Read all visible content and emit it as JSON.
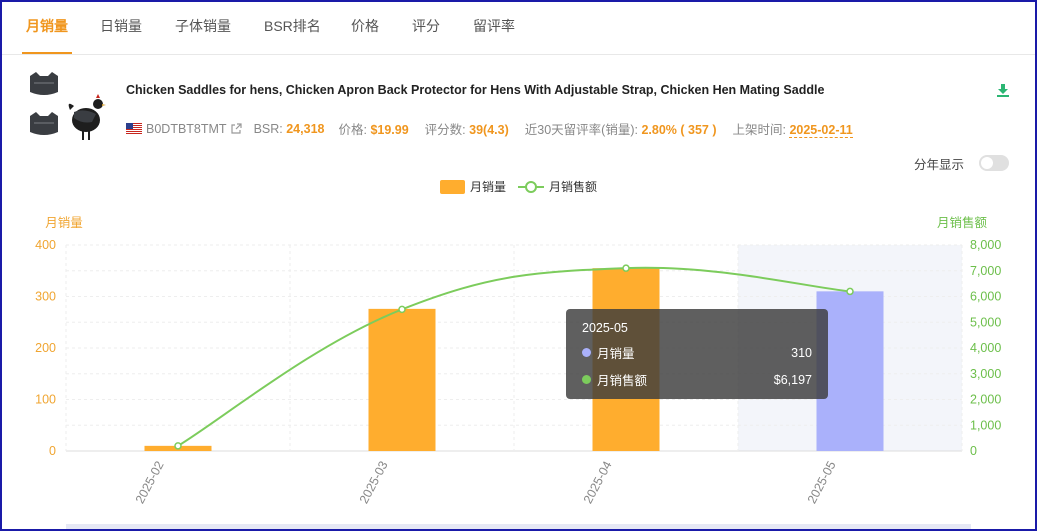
{
  "tabs": [
    {
      "label": "月销量",
      "active": true
    },
    {
      "label": "日销量",
      "active": false
    },
    {
      "label": "子体销量",
      "active": false
    },
    {
      "label": "BSR排名",
      "active": false
    },
    {
      "label": "价格",
      "active": false
    },
    {
      "label": "评分",
      "active": false
    },
    {
      "label": "留评率",
      "active": false
    }
  ],
  "product": {
    "title": "Chicken Saddles for hens, Chicken Apron Back Protector for Hens With Adjustable Strap, Chicken Hen Mating Saddle",
    "asin": "B0DTBT8TMT",
    "bsr_label": "BSR:",
    "bsr": "24,318",
    "price_label": "价格:",
    "price": "$19.99",
    "reviews_label": "评分数:",
    "reviews": "39(4.3)",
    "review_rate_label": "近30天留评率(销量):",
    "review_rate": "2.80% ( 357 )",
    "listed_label": "上架时间:",
    "listed": "2025-02-11",
    "flag_icon": "us-flag-icon",
    "link_icon": "external-link-icon"
  },
  "controls": {
    "yearly_label": "分年显示",
    "yearly_on": false,
    "download_icon": "download-icon"
  },
  "legend": {
    "bar_label": "月销量",
    "line_label": "月销售额"
  },
  "chart_data": {
    "type": "bar",
    "categories": [
      "2025-02",
      "2025-03",
      "2025-04",
      "2025-05"
    ],
    "series": [
      {
        "name": "月销量",
        "type": "bar",
        "axis": "left",
        "values": [
          10,
          276,
          355,
          310
        ],
        "color": "#ffad2e",
        "highlight_color": "#aab1fb"
      },
      {
        "name": "月销售额",
        "type": "line",
        "axis": "right",
        "values": [
          200,
          5500,
          7100,
          6197
        ],
        "color": "#7ccc5c"
      }
    ],
    "y_left": {
      "label": "月销量",
      "ticks": [
        "0",
        "100",
        "200",
        "300",
        "400"
      ],
      "range": [
        0,
        400
      ],
      "color": "#f0a531"
    },
    "y_right": {
      "label": "月销售额",
      "ticks": [
        "0",
        "1,000",
        "2,000",
        "3,000",
        "4,000",
        "5,000",
        "6,000",
        "7,000",
        "8,000"
      ],
      "range": [
        0,
        8000
      ],
      "color": "#6cbf4a"
    },
    "highlight_index": 3
  },
  "tooltip": {
    "title": "2025-05",
    "rows": [
      {
        "label": "月销量",
        "value": "310",
        "color": "#aab1fb"
      },
      {
        "label": "月销售额",
        "value": "$6,197",
        "color": "#7ccc5c"
      }
    ]
  }
}
